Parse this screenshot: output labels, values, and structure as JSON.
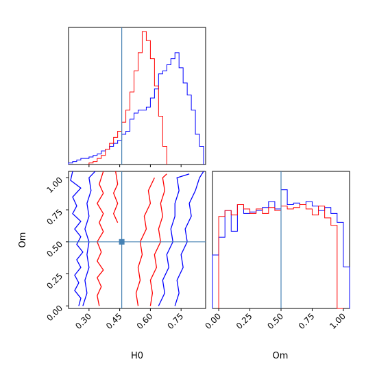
{
  "chart_data": [
    {
      "type": "histogram",
      "panel": "H0 marginal",
      "ylabel": "",
      "xlim": [
        0.2,
        0.87
      ],
      "truth_line": 0.46,
      "series": [
        {
          "name": "",
          "color": "#0000ff",
          "bin_edges": [
            0.2,
            0.22,
            0.24,
            0.26,
            0.28,
            0.3,
            0.32,
            0.34,
            0.36,
            0.38,
            0.4,
            0.42,
            0.44,
            0.46,
            0.48,
            0.5,
            0.52,
            0.54,
            0.56,
            0.58,
            0.6,
            0.62,
            0.64,
            0.66,
            0.68,
            0.7,
            0.72,
            0.74,
            0.76,
            0.78,
            0.8,
            0.82,
            0.84,
            0.86
          ],
          "counts": [
            1,
            2,
            3,
            4,
            4,
            5,
            6,
            7,
            9,
            10,
            12,
            14,
            16,
            20,
            22,
            30,
            34,
            36,
            36,
            38,
            44,
            50,
            60,
            62,
            66,
            70,
            74,
            64,
            54,
            46,
            36,
            20,
            12
          ]
        },
        {
          "name": "",
          "color": "#ff0000",
          "bin_edges": [
            0.3,
            0.32,
            0.34,
            0.36,
            0.38,
            0.4,
            0.42,
            0.44,
            0.46,
            0.48,
            0.5,
            0.52,
            0.54,
            0.56,
            0.58,
            0.6,
            0.62,
            0.64,
            0.66,
            0.68
          ],
          "counts": [
            1,
            2,
            4,
            6,
            10,
            14,
            18,
            22,
            28,
            36,
            48,
            62,
            74,
            88,
            82,
            70,
            52,
            32,
            12
          ]
        }
      ]
    },
    {
      "type": "contour",
      "panel": "H0 vs Om joint",
      "xlabel": "H0",
      "ylabel": "Om",
      "xlim": [
        0.2,
        0.87
      ],
      "ylim": [
        -0.02,
        1.05
      ],
      "xticks": [
        "0.30",
        "0.45",
        "0.60",
        "0.75"
      ],
      "yticks": [
        "0.00",
        "0.25",
        "0.50",
        "0.75",
        "1.00"
      ],
      "truth_point": [
        0.46,
        0.5
      ],
      "series": [
        {
          "name": "",
          "color": "#0000ff",
          "contours": [
            [
              [
                0.27,
                0.0
              ],
              [
                0.29,
                0.1
              ],
              [
                0.28,
                0.2
              ],
              [
                0.3,
                0.3
              ],
              [
                0.29,
                0.4
              ],
              [
                0.3,
                0.5
              ],
              [
                0.28,
                0.6
              ],
              [
                0.3,
                0.7
              ],
              [
                0.29,
                0.8
              ],
              [
                0.31,
                0.9
              ],
              [
                0.3,
                1.0
              ],
              [
                0.33,
                1.05
              ]
            ],
            [
              [
                0.22,
                1.05
              ],
              [
                0.21,
                0.98
              ],
              [
                0.26,
                0.92
              ],
              [
                0.22,
                0.85
              ],
              [
                0.24,
                0.78
              ],
              [
                0.22,
                0.72
              ],
              [
                0.26,
                0.66
              ],
              [
                0.23,
                0.6
              ],
              [
                0.26,
                0.54
              ],
              [
                0.24,
                0.48
              ],
              [
                0.27,
                0.42
              ],
              [
                0.24,
                0.36
              ],
              [
                0.26,
                0.3
              ],
              [
                0.23,
                0.24
              ],
              [
                0.25,
                0.18
              ],
              [
                0.23,
                0.12
              ],
              [
                0.26,
                0.06
              ],
              [
                0.25,
                0.0
              ]
            ],
            [
              [
                0.72,
                0.0
              ],
              [
                0.74,
                0.1
              ],
              [
                0.73,
                0.2
              ],
              [
                0.76,
                0.3
              ],
              [
                0.75,
                0.4
              ],
              [
                0.78,
                0.5
              ],
              [
                0.77,
                0.6
              ],
              [
                0.8,
                0.7
              ],
              [
                0.79,
                0.8
              ],
              [
                0.82,
                0.9
              ],
              [
                0.84,
                1.0
              ],
              [
                0.86,
                1.05
              ]
            ],
            [
              [
                0.64,
                0.0
              ],
              [
                0.67,
                0.1
              ],
              [
                0.66,
                0.2
              ],
              [
                0.69,
                0.3
              ],
              [
                0.68,
                0.4
              ],
              [
                0.71,
                0.5
              ],
              [
                0.7,
                0.6
              ],
              [
                0.72,
                0.7
              ],
              [
                0.72,
                0.8
              ],
              [
                0.74,
                0.9
              ],
              [
                0.73,
                1.0
              ],
              [
                0.79,
                1.03
              ]
            ]
          ]
        },
        {
          "name": "",
          "color": "#ff0000",
          "contours": [
            [
              [
                0.35,
                0.0
              ],
              [
                0.34,
                0.08
              ],
              [
                0.36,
                0.15
              ],
              [
                0.34,
                0.22
              ],
              [
                0.37,
                0.28
              ],
              [
                0.34,
                0.35
              ],
              [
                0.36,
                0.42
              ],
              [
                0.34,
                0.5
              ],
              [
                0.37,
                0.58
              ],
              [
                0.35,
                0.65
              ],
              [
                0.37,
                0.72
              ],
              [
                0.34,
                0.8
              ],
              [
                0.37,
                0.88
              ],
              [
                0.35,
                0.95
              ],
              [
                0.37,
                1.05
              ]
            ],
            [
              [
                0.54,
                0.0
              ],
              [
                0.53,
                0.1
              ],
              [
                0.55,
                0.2
              ],
              [
                0.54,
                0.3
              ],
              [
                0.56,
                0.4
              ],
              [
                0.55,
                0.5
              ],
              [
                0.58,
                0.6
              ],
              [
                0.57,
                0.7
              ],
              [
                0.6,
                0.8
              ],
              [
                0.59,
                0.9
              ],
              [
                0.62,
                1.0
              ]
            ],
            [
              [
                0.6,
                0.0
              ],
              [
                0.61,
                0.1
              ],
              [
                0.6,
                0.2
              ],
              [
                0.63,
                0.3
              ],
              [
                0.62,
                0.4
              ],
              [
                0.65,
                0.5
              ],
              [
                0.64,
                0.6
              ],
              [
                0.66,
                0.7
              ],
              [
                0.65,
                0.8
              ],
              [
                0.67,
                0.9
              ],
              [
                0.66,
                1.0
              ],
              [
                0.68,
                1.03
              ]
            ],
            [
              [
                0.43,
                1.05
              ],
              [
                0.44,
                0.95
              ],
              [
                0.42,
                0.88
              ],
              [
                0.44,
                0.8
              ],
              [
                0.42,
                0.72
              ],
              [
                0.44,
                0.65
              ]
            ]
          ]
        }
      ]
    },
    {
      "type": "histogram",
      "panel": "Om marginal",
      "xlabel": "Om",
      "xlim": [
        -0.05,
        1.05
      ],
      "xticks": [
        "0.00",
        "0.25",
        "0.50",
        "0.75",
        "1.00"
      ],
      "truth_line": 0.5,
      "series": [
        {
          "name": "",
          "color": "#0000ff",
          "bin_edges": [
            -0.05,
            0.0,
            0.05,
            0.1,
            0.15,
            0.2,
            0.25,
            0.3,
            0.35,
            0.4,
            0.45,
            0.5,
            0.55,
            0.6,
            0.65,
            0.7,
            0.75,
            0.8,
            0.85,
            0.9,
            0.95,
            1.0,
            1.05
          ],
          "counts": [
            36,
            48,
            66,
            52,
            70,
            64,
            65,
            66,
            68,
            72,
            67,
            80,
            70,
            71,
            70,
            72,
            69,
            66,
            68,
            64,
            58,
            28
          ]
        },
        {
          "name": "",
          "color": "#ff0000",
          "bin_edges": [
            0.0,
            0.05,
            0.1,
            0.15,
            0.2,
            0.25,
            0.3,
            0.35,
            0.4,
            0.45,
            0.5,
            0.55,
            0.6,
            0.65,
            0.7,
            0.75,
            0.8,
            0.85,
            0.9,
            0.95,
            1.0
          ],
          "counts": [
            62,
            66,
            63,
            70,
            67,
            64,
            67,
            64,
            68,
            66,
            69,
            67,
            68,
            70,
            67,
            63,
            69,
            61,
            56,
            0
          ]
        }
      ]
    }
  ],
  "colors": {
    "truth": "#4682b4",
    "series_blue": "#0000ff",
    "series_red": "#ff0000"
  }
}
